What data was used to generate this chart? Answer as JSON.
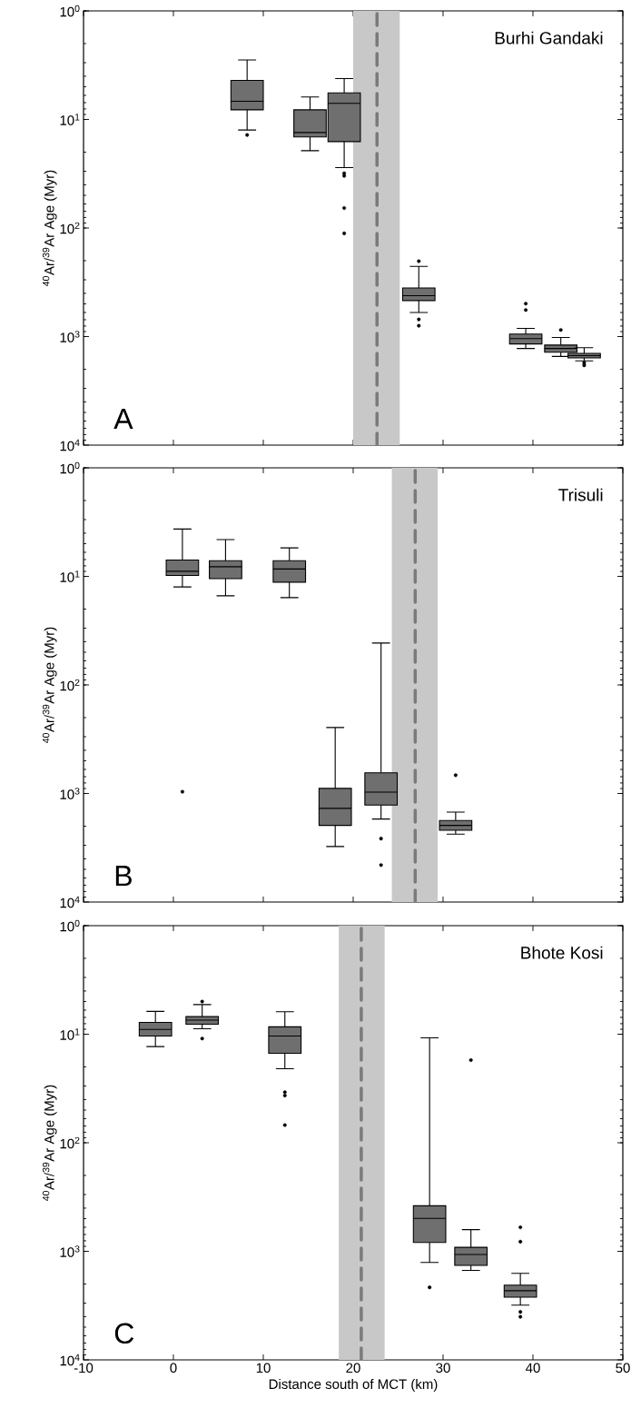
{
  "chart_data": [
    {
      "type": "box",
      "title": "Burhi Gandaki",
      "ylabel": "$^{40}$Ar/$^{39}$Ar Age (Myr)",
      "annotations": [
        "A"
      ],
      "color": "#6f6f6f",
      "log": "y",
      "tick_labels": "y",
      "x": [
        8.2,
        15.2,
        19.0,
        27.3,
        39.2,
        43.1,
        45.7
      ],
      "boxes": [
        {
          "low": 2.83,
          "q1": 4.37,
          "median": 6.8,
          "q3": 8.15,
          "high": 12.5,
          "outliers": [
            13.9
          ]
        },
        {
          "low": 6.2,
          "q1": 8.15,
          "median": 13.2,
          "q3": 14.5,
          "high": 19.4
        },
        {
          "low": 4.2,
          "q1": 5.7,
          "median": 7.1,
          "q3": 16.0,
          "high": 27.8,
          "outliers": [
            31.3,
            33.1,
            65.4,
            112
          ]
        },
        {
          "low": 226,
          "q1": 357,
          "median": 420,
          "q3": 466,
          "high": 601,
          "outliers": [
            202,
            695,
            795
          ]
        },
        {
          "low": 841,
          "q1": 949,
          "median": 1045,
          "q3": 1169,
          "high": 1288,
          "outliers": [
            497,
            569
          ]
        },
        {
          "low": 1020,
          "q1": 1197,
          "median": 1288,
          "q3": 1393,
          "high": 1523,
          "outliers": [
            869
          ]
        },
        {
          "low": 1265,
          "q1": 1429,
          "median": 1500,
          "q3": 1574,
          "high": 1676,
          "outliers": [
            1746,
            1840
          ]
        }
      ],
      "xlim": [
        -10,
        50
      ],
      "xticks": [
        -10,
        0,
        10,
        20,
        30,
        40,
        50
      ],
      "ylim": [
        10000,
        1
      ],
      "yticks": [
        {
          "value": 1,
          "label": "10$^{0}$"
        },
        {
          "value": 10,
          "label": "10$^{1}$"
        },
        {
          "value": 100,
          "label": "10$^{2}$"
        },
        {
          "value": 1000,
          "label": "10$^{3}$"
        },
        {
          "value": 10000,
          "label": "10$^{4}$"
        }
      ],
      "bands": [
        {
          "axis": "x",
          "from": 20,
          "to": 25.2,
          "color": "#c8c8c8"
        }
      ],
      "ref_lines": [
        {
          "axis": "x",
          "value": 22.65,
          "color": "#7a7a7a",
          "line_style": "dashed"
        }
      ]
    },
    {
      "type": "box",
      "title": "Trisuli",
      "ylabel": "$^{40}$Ar/$^{39}$Ar Age (Myr)",
      "annotations": [
        "B"
      ],
      "color": "#6f6f6f",
      "log": "y",
      "tick_labels": "y",
      "x": [
        1.0,
        5.8,
        12.9,
        18.0,
        23.1,
        31.4
      ],
      "boxes": [
        {
          "low": 3.66,
          "q1": 7.06,
          "median": 8.98,
          "q3": 9.8,
          "high": 12.5,
          "outliers": [
            964
          ]
        },
        {
          "low": 4.58,
          "q1": 7.17,
          "median": 8.15,
          "q3": 10.5,
          "high": 15.1
        },
        {
          "low": 5.46,
          "q1": 7.17,
          "median": 8.55,
          "q3": 11.3,
          "high": 15.7
        },
        {
          "low": 247,
          "q1": 898,
          "median": 1372,
          "q3": 1968,
          "high": 3083
        },
        {
          "low": 41.1,
          "q1": 646,
          "median": 972,
          "q3": 1277,
          "high": 1718,
          "outliers": [
            2604,
            4560
          ]
        },
        {
          "low": 1486,
          "q1": 1774,
          "median": 1968,
          "q3": 2183,
          "high": 2366,
          "outliers": [
            678
          ]
        }
      ],
      "xlim": [
        -10,
        50
      ],
      "xticks": [
        -10,
        0,
        10,
        20,
        30,
        40,
        50
      ],
      "ylim": [
        10000,
        1
      ],
      "yticks": [
        {
          "value": 1,
          "label": "10$^{0}$"
        },
        {
          "value": 10,
          "label": "10$^{1}$"
        },
        {
          "value": 100,
          "label": "10$^{2}$"
        },
        {
          "value": 1000,
          "label": "10$^{3}$"
        },
        {
          "value": 10000,
          "label": "10$^{4}$"
        }
      ],
      "bands": [
        {
          "axis": "x",
          "from": 24.3,
          "to": 29.4,
          "color": "#c8c8c8"
        }
      ],
      "ref_lines": [
        {
          "axis": "x",
          "value": 26.9,
          "color": "#7a7a7a",
          "line_style": "dashed"
        }
      ]
    },
    {
      "type": "box",
      "title": "Bhote Kosi",
      "xlabel": "Distance south of MCT (km)",
      "ylabel": "$^{40}$Ar/$^{39}$Ar Age (Myr)",
      "annotations": [
        "C"
      ],
      "color": "#6f6f6f",
      "log": "y",
      "x": [
        -2.0,
        3.2,
        12.4,
        28.5,
        33.1,
        38.6
      ],
      "boxes": [
        {
          "low": 6.16,
          "q1": 7.78,
          "median": 9.05,
          "q3": 10.4,
          "high": 13.0
        },
        {
          "low": 5.33,
          "q1": 6.89,
          "median": 7.41,
          "q3": 8.09,
          "high": 8.9,
          "outliers": [
            5.0,
            10.96
          ]
        },
        {
          "low": 6.21,
          "q1": 8.55,
          "median": 10.4,
          "q3": 15.0,
          "high": 20.8,
          "outliers": [
            34.2,
            36.7,
            68.7
          ]
        },
        {
          "low": 10.8,
          "q1": 381,
          "median": 497,
          "q3": 828,
          "high": 1267,
          "outliers": [
            2148
          ]
        },
        {
          "low": 631,
          "q1": 919,
          "median": 1071,
          "q3": 1349,
          "high": 1499,
          "outliers": [
            17.3
          ]
        },
        {
          "low": 1597,
          "q1": 2048,
          "median": 2308,
          "q3": 2646,
          "high": 3133,
          "outliers": [
            601,
            815,
            3614,
            4011
          ]
        }
      ],
      "xlim": [
        -10,
        50
      ],
      "xticks": [
        -10,
        0,
        10,
        20,
        30,
        40,
        50
      ],
      "ylim": [
        10000,
        1
      ],
      "yticks": [
        {
          "value": 1,
          "label": "10$^{0}$"
        },
        {
          "value": 10,
          "label": "10$^{1}$"
        },
        {
          "value": 100,
          "label": "10$^{2}$"
        },
        {
          "value": 1000,
          "label": "10$^{3}$"
        },
        {
          "value": 10000,
          "label": "10$^{4}$"
        }
      ],
      "bands": [
        {
          "axis": "x",
          "from": 18.4,
          "to": 23.5,
          "color": "#c8c8c8"
        }
      ],
      "ref_lines": [
        {
          "axis": "x",
          "value": 20.9,
          "color": "#7a7a7a",
          "line_style": "dashed"
        }
      ]
    }
  ]
}
